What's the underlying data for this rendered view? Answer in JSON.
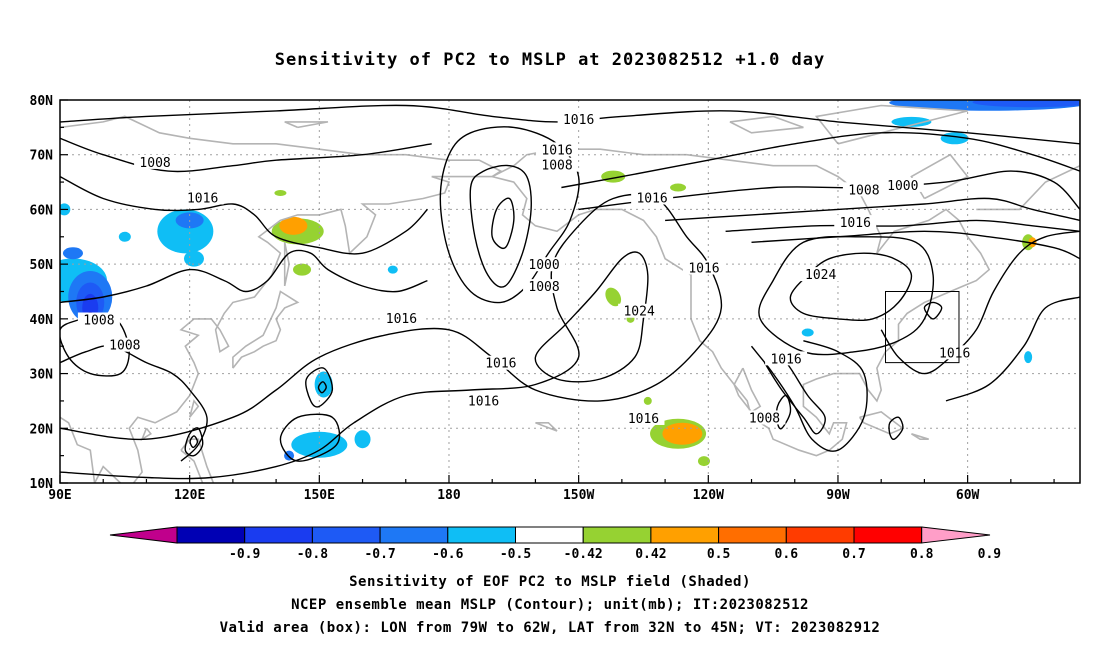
{
  "title": "Sensitivity of PC2 to MSLP at 2023082512 +1.0 day",
  "lat_labels": [
    "80N",
    "70N",
    "60N",
    "50N",
    "40N",
    "30N",
    "20N",
    "10N"
  ],
  "lon_labels": [
    "90E",
    "120E",
    "150E",
    "180",
    "150W",
    "120W",
    "90W",
    "60W"
  ],
  "colorbar": {
    "labels": [
      "-0.9",
      "-0.8",
      "-0.7",
      "-0.6",
      "-0.5",
      "-0.42",
      "0.42",
      "0.5",
      "0.6",
      "0.7",
      "0.8",
      "0.9"
    ],
    "colors": [
      "#c0008c",
      "#0000b4",
      "#1a3cf0",
      "#1e5af5",
      "#1e78f5",
      "#0fbef5",
      "#ffffff",
      "#96d232",
      "#ffa000",
      "#ff6e00",
      "#ff3c00",
      "#ff0000",
      "#ff9ec8"
    ]
  },
  "contour_labels": [
    {
      "text": "1016",
      "lon": -150,
      "lat": 76.3
    },
    {
      "text": "1016",
      "lon": -155,
      "lat": 70.8
    },
    {
      "text": "1008",
      "lon": -155,
      "lat": 68.0
    },
    {
      "text": "1008",
      "lon": 112,
      "lat": 68.5
    },
    {
      "text": "1016",
      "lon": 123,
      "lat": 62.0
    },
    {
      "text": "1016",
      "lon": -133,
      "lat": 62.0
    },
    {
      "text": "1008",
      "lon": -84,
      "lat": 63.5
    },
    {
      "text": "1000",
      "lon": -75,
      "lat": 64.3
    },
    {
      "text": "1016",
      "lon": -86,
      "lat": 57.5
    },
    {
      "text": "1000",
      "lon": -158,
      "lat": 49.8
    },
    {
      "text": "1008",
      "lon": -158,
      "lat": 45.8
    },
    {
      "text": "1016",
      "lon": -121,
      "lat": 49.2
    },
    {
      "text": "1024",
      "lon": -94,
      "lat": 48.0
    },
    {
      "text": "1024",
      "lon": -136,
      "lat": 41.3
    },
    {
      "text": "1016",
      "lon": 169,
      "lat": 40.0
    },
    {
      "text": "1008",
      "lon": 99,
      "lat": 39.7
    },
    {
      "text": "1008",
      "lon": 105,
      "lat": 35.1
    },
    {
      "text": "1016",
      "lon": -168,
      "lat": 31.8
    },
    {
      "text": "1016",
      "lon": -172,
      "lat": 24.9
    },
    {
      "text": "1016",
      "lon": -102,
      "lat": 32.6
    },
    {
      "text": "1016",
      "lon": -63,
      "lat": 33.7
    },
    {
      "text": "1016",
      "lon": -135,
      "lat": 21.7
    },
    {
      "text": "1008",
      "lon": -107,
      "lat": 21.8
    }
  ],
  "footer": {
    "line1": "Sensitivity of EOF PC2 to MSLP field (Shaded)",
    "line2": "NCEP ensemble mean MSLP (Contour); unit(mb); IT:2023082512",
    "line3": "Valid area (box): LON from 79W to 62W, LAT from 32N to 45N; VT: 2023082912"
  }
}
